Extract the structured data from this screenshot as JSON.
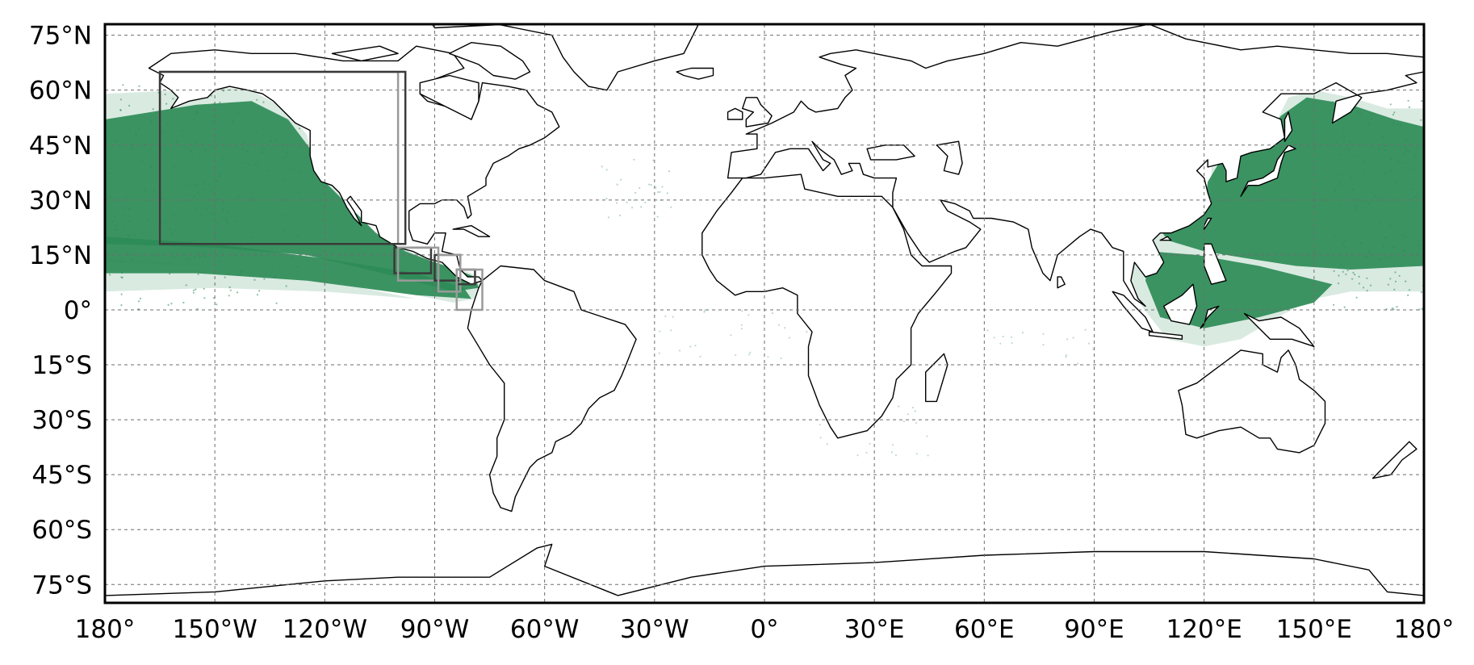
{
  "map": {
    "projection": "equirectangular",
    "extent": {
      "lon": [
        -180,
        180
      ],
      "lat": [
        -80,
        78
      ]
    },
    "gridlines": "dashed",
    "point_color": "#2e8b57",
    "x_ticks": [
      {
        "value": -180,
        "label": "180°"
      },
      {
        "value": -150,
        "label": "150°W"
      },
      {
        "value": -120,
        "label": "120°W"
      },
      {
        "value": -90,
        "label": "90°W"
      },
      {
        "value": -60,
        "label": "60°W"
      },
      {
        "value": -30,
        "label": "30°W"
      },
      {
        "value": 0,
        "label": "0°"
      },
      {
        "value": 30,
        "label": "30°E"
      },
      {
        "value": 60,
        "label": "60°E"
      },
      {
        "value": 90,
        "label": "90°E"
      },
      {
        "value": 120,
        "label": "120°E"
      },
      {
        "value": 150,
        "label": "150°E"
      },
      {
        "value": 180,
        "label": "180°"
      }
    ],
    "y_ticks": [
      {
        "value": 75,
        "label": "75°N"
      },
      {
        "value": 60,
        "label": "60°N"
      },
      {
        "value": 45,
        "label": "45°N"
      },
      {
        "value": 30,
        "label": "30°N"
      },
      {
        "value": 15,
        "label": "15°N"
      },
      {
        "value": 0,
        "label": "0°"
      },
      {
        "value": -15,
        "label": "15°S"
      },
      {
        "value": -30,
        "label": "30°S"
      },
      {
        "value": -45,
        "label": "45°S"
      },
      {
        "value": -60,
        "label": "60°S"
      },
      {
        "value": -75,
        "label": "75°S"
      }
    ],
    "boxes": [
      {
        "color": "#9a9a9a",
        "lon": [
          -165,
          -100
        ],
        "lat": [
          18,
          65
        ]
      },
      {
        "color": "#3a3a3a",
        "lon": [
          -165,
          -98
        ],
        "lat": [
          18,
          65
        ]
      },
      {
        "color": "#3a3a3a",
        "lon": [
          -101,
          -91
        ],
        "lat": [
          10,
          17
        ]
      },
      {
        "color": "#9a9a9a",
        "lon": [
          -100,
          -89
        ],
        "lat": [
          8,
          17
        ]
      },
      {
        "color": "#3a3a3a",
        "lon": [
          -90,
          -83
        ],
        "lat": [
          8,
          15
        ]
      },
      {
        "color": "#9a9a9a",
        "lon": [
          -89,
          -83
        ],
        "lat": [
          5,
          15
        ]
      },
      {
        "color": "#3a3a3a",
        "lon": [
          -84,
          -79
        ],
        "lat": [
          7,
          11
        ]
      },
      {
        "color": "#9a9a9a",
        "lon": [
          -84,
          -77
        ],
        "lat": [
          0,
          11
        ]
      }
    ]
  }
}
